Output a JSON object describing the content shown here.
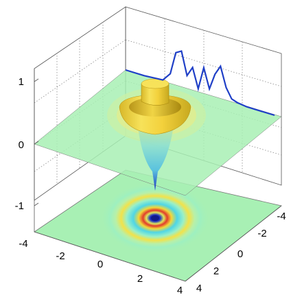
{
  "chart_data": {
    "type": "surface",
    "title": "",
    "xlabel": "",
    "ylabel": "",
    "zlabel": "",
    "x_ticks": [
      "-4",
      "-2",
      "0",
      "2",
      "4"
    ],
    "y_ticks": [
      "-4",
      "-2",
      "0",
      "2",
      "4"
    ],
    "z_ticks": [
      "1",
      "0",
      "-1"
    ],
    "xlim": [
      -4,
      4
    ],
    "ylim": [
      -4,
      4
    ],
    "zlim": [
      -1.3,
      1.3
    ],
    "grid": true,
    "surface": {
      "description_formula": "ring-shaped ripple surface (radial oscillation)",
      "radial_profile": [
        {
          "r": 0.0,
          "z": 0.55
        },
        {
          "r": 0.3,
          "z": 0.5
        },
        {
          "r": 0.6,
          "z": 0.2
        },
        {
          "r": 0.9,
          "z": -0.3
        },
        {
          "r": 1.2,
          "z": -0.15
        },
        {
          "r": 1.5,
          "z": 0.35
        },
        {
          "r": 1.9,
          "z": 0.15
        },
        {
          "r": 2.3,
          "z": -0.05
        },
        {
          "r": 2.8,
          "z": 0.04
        },
        {
          "r": 4.0,
          "z": 0.0
        }
      ],
      "spike_min_z": -0.95
    },
    "projection_curve": {
      "name": "",
      "color": "#1f3fc7",
      "x": [
        -4,
        -3,
        -2,
        -1.6,
        -1.3,
        -1.0,
        -0.7,
        -0.4,
        -0.1,
        0.2,
        0.5,
        0.8,
        1.1,
        1.4,
        1.7,
        2.0,
        2.5,
        3,
        4
      ],
      "z": [
        0.0,
        0.0,
        0.02,
        0.15,
        0.5,
        0.55,
        0.2,
        0.35,
        0.05,
        0.4,
        0.1,
        0.35,
        0.5,
        0.2,
        0.05,
        0.02,
        0.0,
        0.0,
        0.0
      ]
    },
    "colors": {
      "plane": "#a8f0b4",
      "ring_yellow": "#f4d43a",
      "ring_cyan": "#4fd6e6",
      "ring_blue": "#1a2cc0",
      "ring_red": "#e23b2b",
      "curve": "#1f3fc7"
    }
  }
}
